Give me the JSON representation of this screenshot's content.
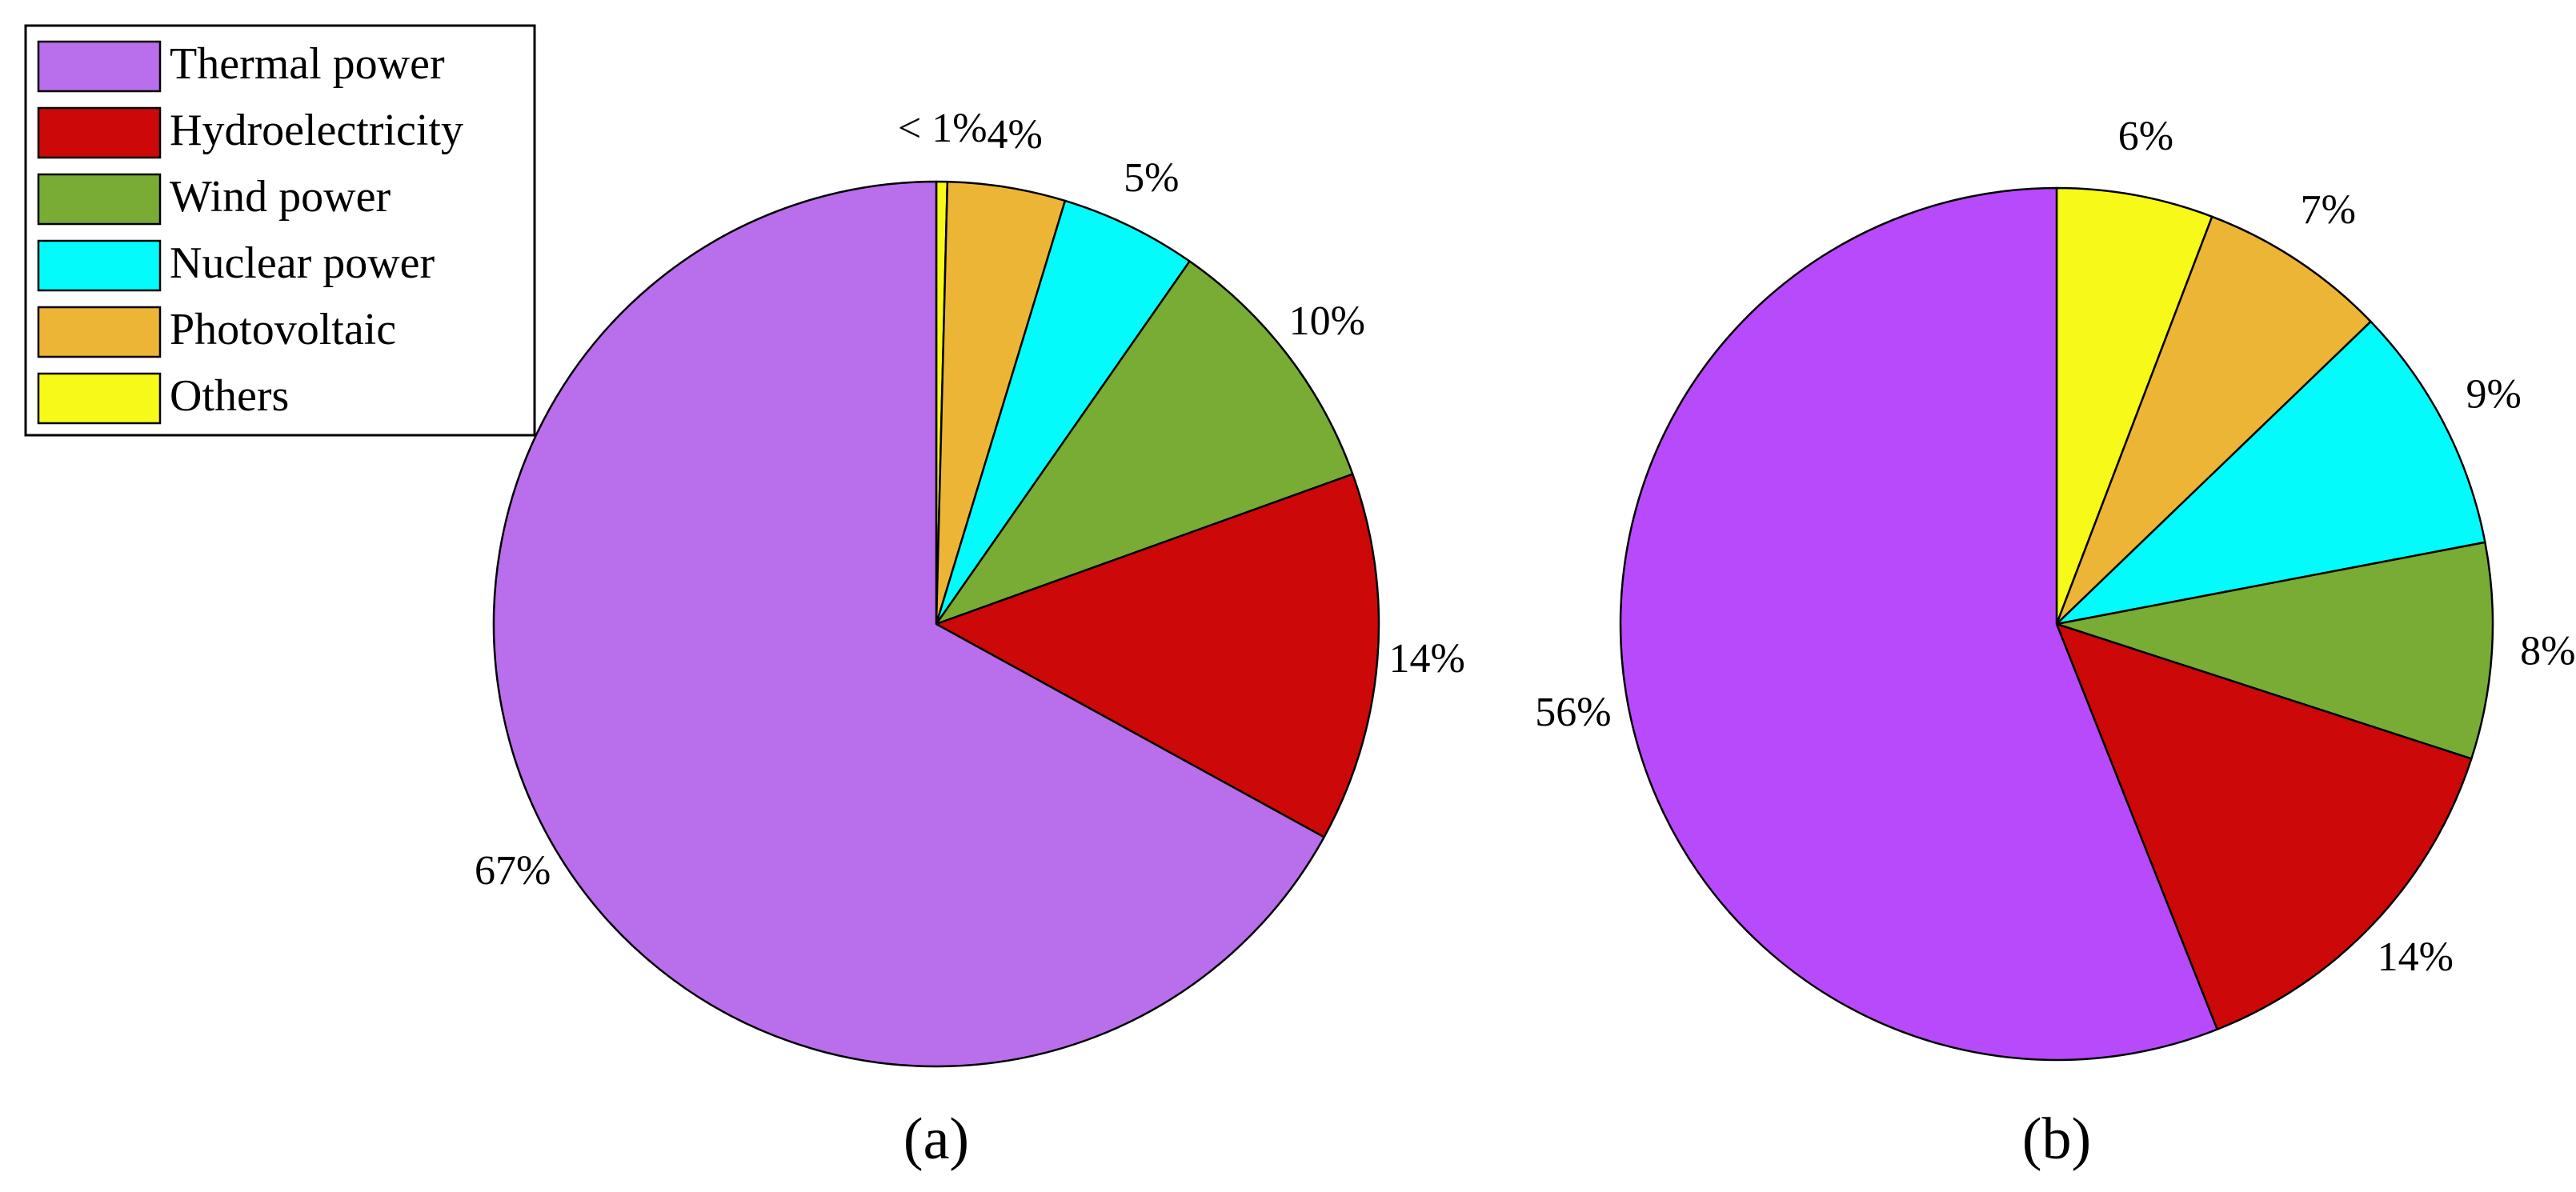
{
  "chart_data": [
    {
      "type": "pie",
      "panel_label": "(a)",
      "start": "12 o'clock",
      "direction": "clockwise",
      "slices": [
        {
          "name": "Others",
          "value": 0.4,
          "label": "< 1%"
        },
        {
          "name": "Photovoltaic",
          "value": 4.3,
          "label": "4%"
        },
        {
          "name": "Nuclear power",
          "value": 5.0,
          "label": "5%"
        },
        {
          "name": "Wind power",
          "value": 9.8,
          "label": "10%"
        },
        {
          "name": "Hydroelectricity",
          "value": 13.5,
          "label": "14%"
        },
        {
          "name": "Thermal power",
          "value": 67.0,
          "label": "67%"
        }
      ]
    },
    {
      "type": "pie",
      "panel_label": "(b)",
      "start": "12 o'clock",
      "direction": "clockwise",
      "slices": [
        {
          "name": "Others",
          "value": 5.8,
          "label": "6%"
        },
        {
          "name": "Photovoltaic",
          "value": 7.0,
          "label": "7%"
        },
        {
          "name": "Nuclear power",
          "value": 9.2,
          "label": "9%"
        },
        {
          "name": "Wind power",
          "value": 8.0,
          "label": "8%"
        },
        {
          "name": "Hydroelectricity",
          "value": 14.0,
          "label": "14%"
        },
        {
          "name": "Thermal power",
          "value": 56.0,
          "label": "56%"
        }
      ]
    }
  ],
  "legend": {
    "placement": "top-left",
    "entries": [
      {
        "name": "Thermal power",
        "color": "#b96eec"
      },
      {
        "name": "Hydroelectricity",
        "color": "#cc0808"
      },
      {
        "name": "Wind power",
        "color": "#79ac34"
      },
      {
        "name": "Nuclear power",
        "color": "#03fcfb"
      },
      {
        "name": "Photovoltaic",
        "color": "#ecb535"
      },
      {
        "name": "Others",
        "color": "#f7fa18"
      }
    ]
  },
  "slice_colors": {
    "a": {
      "Thermal power": "#b96eec",
      "Hydroelectricity": "#cc0808",
      "Wind power": "#79ac34",
      "Nuclear power": "#03fcfb",
      "Photovoltaic": "#ecb535",
      "Others": "#f7fa18"
    },
    "b": {
      "Thermal power": "#b74bfc",
      "Hydroelectricity": "#cc0808",
      "Wind power": "#79ac34",
      "Nuclear power": "#03fcfb",
      "Photovoltaic": "#ecb535",
      "Others": "#f7fa18"
    }
  }
}
